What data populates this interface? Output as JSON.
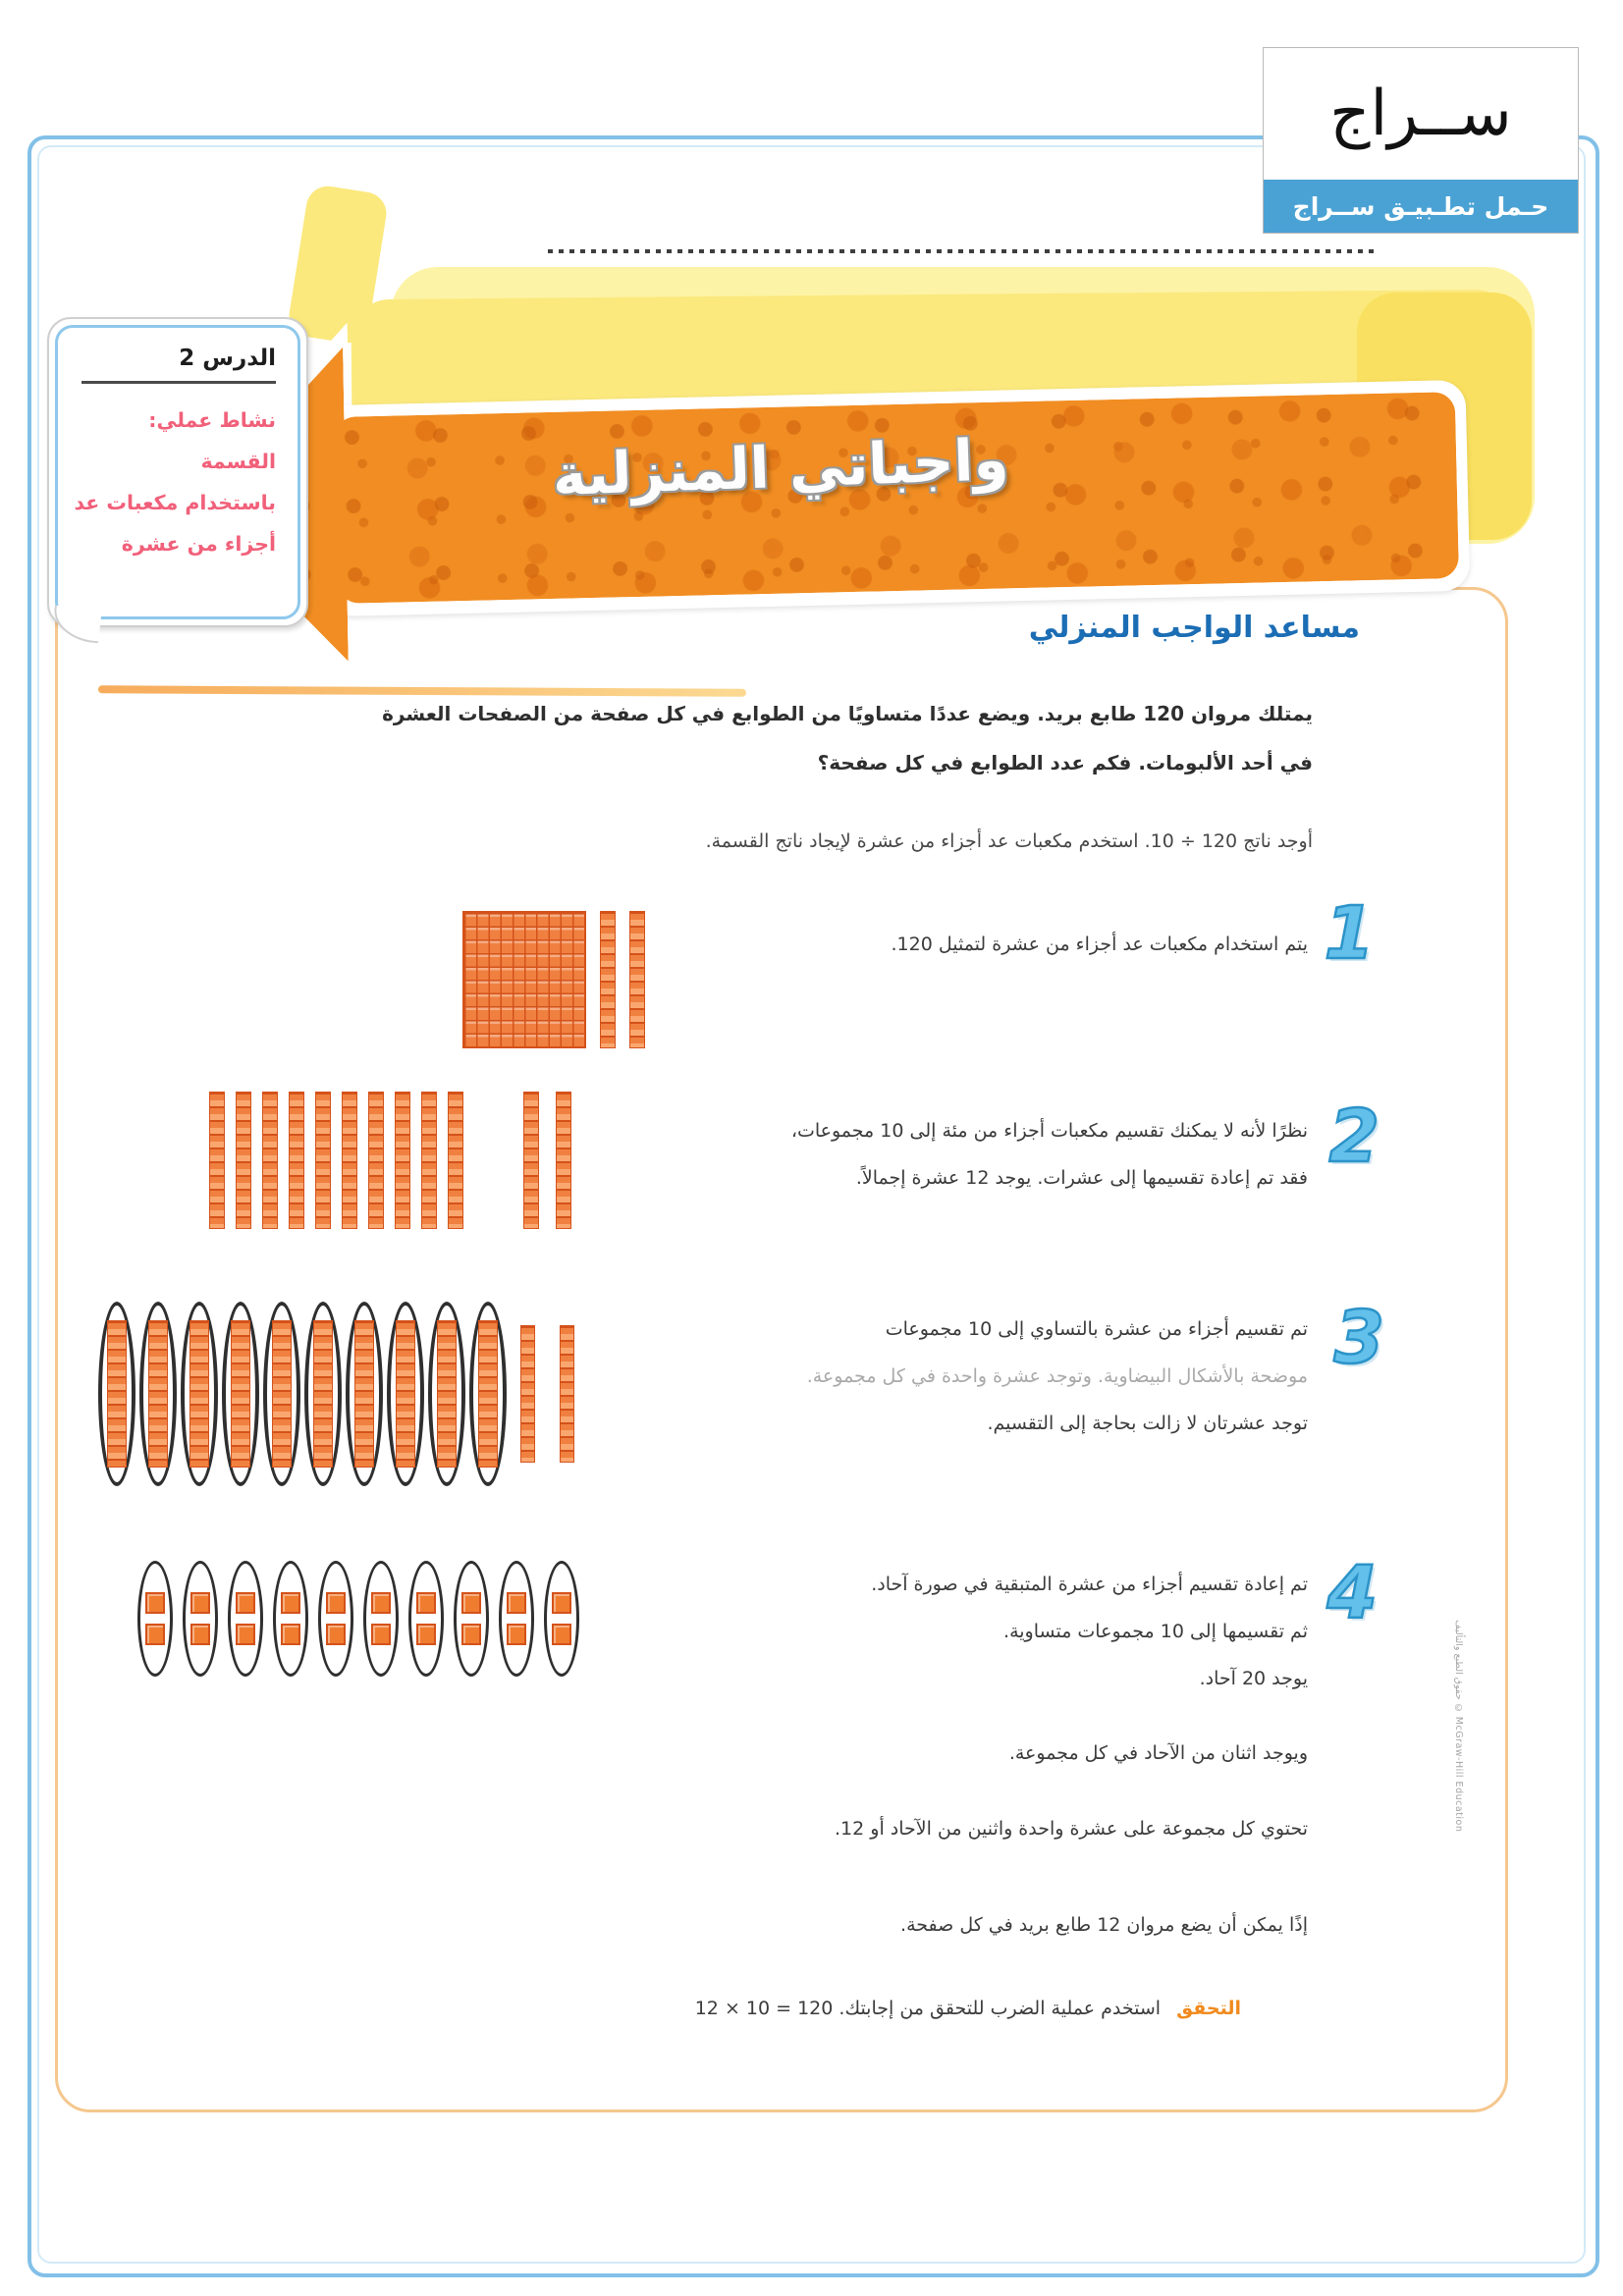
{
  "logo": {
    "title": "ســراج",
    "subtitle": "حـمل تطـبيـق ســراج"
  },
  "banner": {
    "title": "واجباتي المنزلية"
  },
  "lesson_box": {
    "lesson": "الدرس 2",
    "activity_lines": [
      "نشاط عملي: القسمة",
      "باستخدام مكعبات عد",
      "أجزاء من عشرة"
    ]
  },
  "helper": {
    "title": "مساعد الواجب المنزلي",
    "problem_line1": "يمتلك مروان 120 طابع بريد. ويضع عددًا متساويًا من الطوابع في كل صفحة من الصفحات العشرة",
    "problem_line2": "في أحد الألبومات. فكم عدد الطوابع في كل صفحة؟",
    "instruction": "أوجد ناتج 120 ÷ 10. استخدم مكعبات عد أجزاء من عشرة لإيجاد ناتج القسمة.",
    "steps": [
      {
        "number": "1",
        "lines": [
          "يتم استخدام مكعبات عد أجزاء من عشرة لتمثيل 120."
        ]
      },
      {
        "number": "2",
        "lines": [
          "نظرًا لأنه لا يمكنك تقسيم مكعبات أجزاء من مئة إلى 10 مجموعات،",
          "فقد تم إعادة تقسيمها إلى عشرات. يوجد 12 عشرة إجمالاً."
        ]
      },
      {
        "number": "3",
        "lines": [
          "تم تقسيم أجزاء من عشرة بالتساوي إلى 10 مجموعات",
          "موضحة بالأشكال البيضاوية. وتوجد عشرة واحدة في كل مجموعة.",
          "توجد عشرتان لا زالت بحاجة إلى التقسيم."
        ]
      },
      {
        "number": "4",
        "lines": [
          "تم إعادة تقسيم أجزاء من عشرة المتبقية في صورة آحاد.",
          "ثم تقسيمها إلى 10 مجموعات متساوية.",
          "يوجد 20 آحاد."
        ]
      }
    ],
    "notes": [
      "ويوجد اثنان من الآحاد في كل مجموعة.",
      "تحتوي كل مجموعة على عشرة واحدة واثنين من الآحاد أو 12.",
      "إذًا يمكن أن يضع مروان 12 طابع بريد في كل صفحة."
    ],
    "check_label": "التحقق",
    "check_text": "استخدم عملية الضرب للتحقق من إجابتك. 120 = 10 × 12"
  },
  "blocks": {
    "step1_flats": 1,
    "step1_rods": 2,
    "step2_group_rods": 10,
    "step2_loose_rods": 2,
    "step3_ovals": 10,
    "step3_loose_rods": 2,
    "step4_ovals": 10,
    "step4_units_per_oval": 2
  },
  "copyright": "حقوق الطبع والتأليف © McGraw-Hill Education",
  "colors": {
    "title_blue": "#1b6db4",
    "step_number_blue": "#63c0ea",
    "lesson_pink": "#f1607a",
    "arrow_orange": "#f18d22",
    "block_orange": "#f08040",
    "page_border_blue": "#82c0e8",
    "logo_bar_blue": "#4aa2d4",
    "check_orange": "#f08a1e"
  }
}
